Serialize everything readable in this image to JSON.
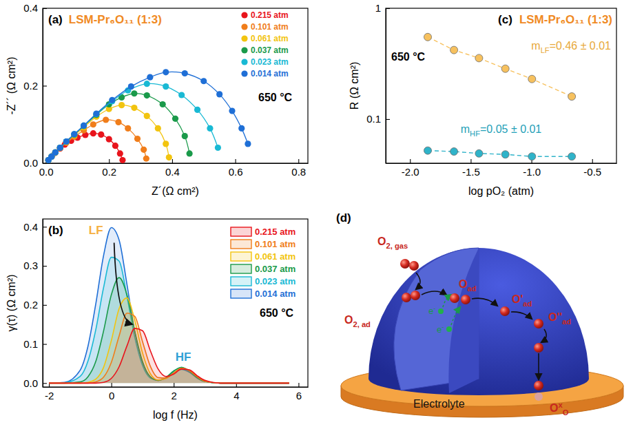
{
  "chart_data": [
    {
      "type": "scatter",
      "title": "LSM-Pr₆O₁₁ (1:3)",
      "annotations": [
        "(a)",
        "650 °C"
      ],
      "x_label": "Z´(Ω cm²)",
      "y_label": "-Z´´ (Ω cm²)",
      "xlim": [
        -0.01,
        0.83
      ],
      "ylim": [
        0,
        0.4
      ],
      "xticks": [
        {
          "value": 0,
          "label": "0.0"
        },
        0.2,
        0.4,
        0.6,
        0.8
      ],
      "yticks": [
        {
          "value": 0,
          "label": "0.0"
        },
        0.2,
        0.4
      ],
      "legend": "top-right",
      "marker": "circle",
      "line_style": "solid",
      "series": [
        {
          "name": "0.215 atm",
          "color": "#e8141c",
          "x": [
            0.008,
            0.018,
            0.03,
            0.045,
            0.06,
            0.08,
            0.1,
            0.125,
            0.15,
            0.175,
            0.2,
            0.22,
            0.235,
            0.243
          ],
          "values": [
            0.008,
            0.017,
            0.027,
            0.038,
            0.048,
            0.058,
            0.066,
            0.073,
            0.077,
            0.074,
            0.062,
            0.045,
            0.025,
            0.008
          ]
        },
        {
          "name": "0.101 atm",
          "color": "#f07d1a",
          "x": [
            0.008,
            0.018,
            0.03,
            0.045,
            0.065,
            0.09,
            0.12,
            0.15,
            0.19,
            0.23,
            0.26,
            0.29,
            0.31,
            0.318
          ],
          "values": [
            0.008,
            0.017,
            0.027,
            0.039,
            0.053,
            0.068,
            0.085,
            0.1,
            0.112,
            0.106,
            0.09,
            0.063,
            0.035,
            0.012
          ]
        },
        {
          "name": "0.061 atm",
          "color": "#f2c40f",
          "x": [
            0.008,
            0.018,
            0.03,
            0.045,
            0.065,
            0.09,
            0.12,
            0.16,
            0.2,
            0.24,
            0.28,
            0.32,
            0.355,
            0.38,
            0.39
          ],
          "values": [
            0.008,
            0.017,
            0.028,
            0.04,
            0.055,
            0.072,
            0.093,
            0.12,
            0.14,
            0.15,
            0.143,
            0.122,
            0.09,
            0.05,
            0.015
          ]
        },
        {
          "name": "0.037 atm",
          "color": "#1a9a4a",
          "x": [
            0.008,
            0.018,
            0.03,
            0.045,
            0.065,
            0.09,
            0.12,
            0.16,
            0.2,
            0.24,
            0.28,
            0.32,
            0.37,
            0.41,
            0.44,
            0.455
          ],
          "values": [
            0.008,
            0.017,
            0.028,
            0.04,
            0.056,
            0.074,
            0.096,
            0.125,
            0.152,
            0.17,
            0.18,
            0.175,
            0.152,
            0.115,
            0.07,
            0.025
          ]
        },
        {
          "name": "0.023 atm",
          "color": "#19b9d4",
          "x": [
            0.008,
            0.018,
            0.03,
            0.045,
            0.065,
            0.09,
            0.12,
            0.16,
            0.21,
            0.26,
            0.32,
            0.38,
            0.43,
            0.48,
            0.52,
            0.545
          ],
          "values": [
            0.008,
            0.017,
            0.028,
            0.04,
            0.056,
            0.075,
            0.097,
            0.127,
            0.16,
            0.188,
            0.205,
            0.198,
            0.176,
            0.138,
            0.09,
            0.04
          ]
        },
        {
          "name": "0.014 atm",
          "color": "#1f6fd6",
          "x": [
            0.008,
            0.018,
            0.03,
            0.045,
            0.065,
            0.09,
            0.12,
            0.16,
            0.21,
            0.27,
            0.33,
            0.38,
            0.44,
            0.5,
            0.55,
            0.59,
            0.62,
            0.64
          ],
          "values": [
            0.008,
            0.017,
            0.028,
            0.04,
            0.056,
            0.075,
            0.097,
            0.128,
            0.163,
            0.198,
            0.222,
            0.235,
            0.232,
            0.212,
            0.178,
            0.135,
            0.09,
            0.05
          ]
        }
      ]
    },
    {
      "type": "area",
      "annotations": [
        "(b)",
        "LF",
        "HF",
        "650 °C"
      ],
      "x_label": "log f (Hz)",
      "y_label": "γ(τ) (Ω cm²)",
      "xlim": [
        -2.2,
        6.3
      ],
      "ylim": [
        -0.01,
        0.42
      ],
      "xticks": [
        -2,
        0,
        2,
        4,
        6
      ],
      "yticks": [
        {
          "value": 0,
          "label": "0.0"
        },
        0.1,
        0.2,
        0.3,
        0.4
      ],
      "legend": "top-right",
      "x": [
        -2,
        -1.5,
        -1,
        -0.75,
        -0.5,
        -0.25,
        0,
        0.25,
        0.5,
        0.75,
        1,
        1.25,
        1.5,
        1.75,
        2,
        2.25,
        2.5,
        2.75,
        3,
        3.5,
        4,
        5,
        5.7
      ],
      "series": [
        {
          "name": "0.215 atm",
          "color": "#e8141c",
          "values": [
            0,
            0,
            0,
            0,
            0,
            0.002,
            0.012,
            0.042,
            0.095,
            0.14,
            0.134,
            0.083,
            0.036,
            0.017,
            0.023,
            0.036,
            0.034,
            0.019,
            0.007,
            0,
            0,
            0,
            0
          ]
        },
        {
          "name": "0.101 atm",
          "color": "#f07d1a",
          "values": [
            0,
            0,
            0,
            0,
            0.003,
            0.015,
            0.053,
            0.121,
            0.179,
            0.171,
            0.106,
            0.043,
            0.014,
            0.013,
            0.026,
            0.038,
            0.032,
            0.017,
            0.005,
            0,
            0,
            0,
            0
          ]
        },
        {
          "name": "0.061 atm",
          "color": "#f2c40f",
          "values": [
            0,
            0,
            0,
            0.002,
            0.01,
            0.04,
            0.109,
            0.191,
            0.218,
            0.161,
            0.077,
            0.024,
            0.008,
            0.012,
            0.026,
            0.038,
            0.032,
            0.017,
            0.005,
            0,
            0,
            0,
            0
          ]
        },
        {
          "name": "0.037 atm",
          "color": "#1a9a4a",
          "values": [
            0,
            0,
            0.003,
            0.016,
            0.055,
            0.133,
            0.226,
            0.27,
            0.226,
            0.133,
            0.055,
            0.016,
            0.007,
            0.014,
            0.031,
            0.04,
            0.031,
            0.014,
            0.004,
            0,
            0,
            0,
            0
          ]
        },
        {
          "name": "0.023 atm",
          "color": "#19b9d4",
          "values": [
            0,
            0.001,
            0.017,
            0.056,
            0.136,
            0.244,
            0.322,
            0.312,
            0.222,
            0.117,
            0.045,
            0.013,
            0.007,
            0.014,
            0.031,
            0.04,
            0.031,
            0.014,
            0.004,
            0,
            0,
            0,
            0
          ]
        },
        {
          "name": "0.014 atm",
          "color": "#1f6fd6",
          "values": [
            0,
            0.002,
            0.033,
            0.094,
            0.202,
            0.326,
            0.398,
            0.366,
            0.253,
            0.132,
            0.052,
            0.016,
            0.007,
            0.013,
            0.027,
            0.035,
            0.028,
            0.013,
            0.004,
            0,
            0,
            0,
            0
          ]
        }
      ]
    },
    {
      "type": "line",
      "title": "LSM-Pr₆O₁₁ (1:3)",
      "annotations": [
        "(c)",
        "650 °C",
        {
          "base": "m",
          "sub": "LF",
          "tail": "=0.46 ± 0.01"
        },
        {
          "base": "m",
          "sub": "HF",
          "tail": "=0.05 ± 0.01"
        }
      ],
      "x_label": "log pO₂ (atm)",
      "y_label": "R (Ω cm²)",
      "log": "y",
      "xlim": [
        -2.2,
        -0.3
      ],
      "ylim": [
        0.04,
        1
      ],
      "xticks": [
        {
          "value": -2,
          "label": "-2.0"
        },
        -1.5,
        {
          "value": -1,
          "label": "-1.0"
        },
        -0.5
      ],
      "yticks": [
        0.1,
        1
      ],
      "marker": "circle",
      "line_style": "dashed",
      "series": [
        {
          "color": "#f7c15e",
          "x": [
            -1.854,
            -1.638,
            -1.432,
            -1.215,
            -0.996,
            -0.668
          ],
          "values": [
            0.55,
            0.42,
            0.355,
            0.285,
            0.23,
            0.16
          ]
        },
        {
          "color": "#2fb3c9",
          "x": [
            -1.854,
            -1.638,
            -1.432,
            -1.215,
            -0.996,
            -0.668
          ],
          "values": [
            0.052,
            0.051,
            0.049,
            0.048,
            0.046,
            0.046
          ]
        }
      ]
    }
  ],
  "diagram": {
    "panel_label": "(d)",
    "labels": [
      {
        "base": "O",
        "sub": "2, gas"
      },
      {
        "base": "O",
        "sub": "2, ad"
      },
      {
        "base": "O",
        "sub": "ad"
      },
      {
        "base": "O'",
        "sub": "ad"
      },
      {
        "base": "O''",
        "sub": "ad"
      },
      {
        "base": "O",
        "sup": "x",
        "sub": "O"
      }
    ],
    "electrons": [
      {
        "base": "e",
        "sup": "-"
      },
      {
        "base": "e",
        "sup": "-"
      }
    ],
    "electrolyte": "Electrolyte"
  }
}
